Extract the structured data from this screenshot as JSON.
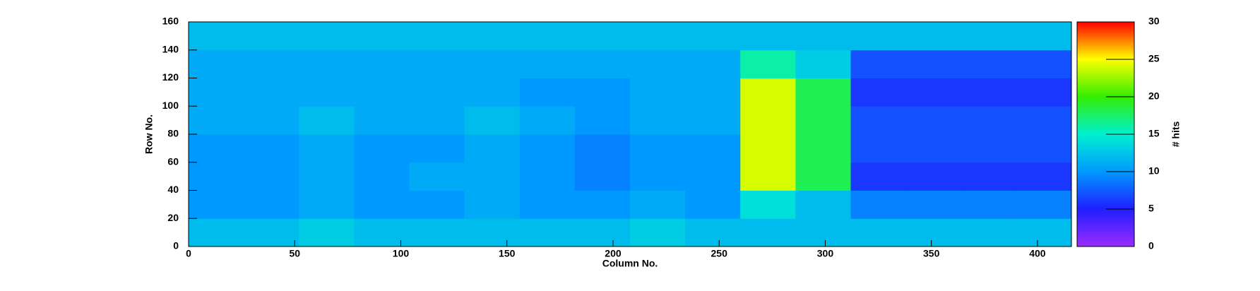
{
  "chart_data": {
    "type": "heatmap",
    "xlabel": "Column No.",
    "ylabel": "Row No.",
    "zlabel": "# hits",
    "xbins": [
      0,
      26,
      52,
      78,
      104,
      130,
      156,
      182,
      208,
      234,
      260,
      286,
      312,
      338,
      364,
      390,
      416
    ],
    "ybins": [
      0,
      20,
      40,
      60,
      80,
      100,
      120,
      140,
      160
    ],
    "z": [
      [
        12,
        12,
        13,
        12,
        12,
        12,
        12,
        12,
        13,
        12,
        12,
        12,
        12,
        12,
        12,
        12
      ],
      [
        10,
        10,
        11,
        10,
        10,
        11,
        10,
        10,
        11,
        10,
        14,
        12,
        9,
        9,
        9,
        9
      ],
      [
        10,
        10,
        11,
        10,
        11,
        11,
        10,
        9,
        10,
        10,
        24,
        18,
        6,
        6,
        6,
        6
      ],
      [
        10,
        10,
        11,
        10,
        10,
        11,
        10,
        9,
        10,
        10,
        24,
        18,
        7,
        7,
        7,
        7
      ],
      [
        11,
        11,
        12,
        11,
        11,
        12,
        11,
        10,
        11,
        11,
        24,
        18,
        7,
        7,
        7,
        7
      ],
      [
        11,
        11,
        11,
        11,
        11,
        11,
        10,
        10,
        11,
        11,
        24,
        18,
        6,
        6,
        6,
        6
      ],
      [
        11,
        11,
        11,
        11,
        11,
        11,
        11,
        11,
        11,
        11,
        16,
        13,
        7,
        7,
        7,
        7
      ],
      [
        12,
        12,
        12,
        12,
        12,
        12,
        12,
        12,
        12,
        12,
        12,
        12,
        12,
        12,
        12,
        12
      ]
    ],
    "xlim": [
      0,
      416
    ],
    "ylim": [
      0,
      160
    ],
    "zlim": [
      0,
      30
    ],
    "xticks": [
      0,
      50,
      100,
      150,
      200,
      250,
      300,
      350,
      400
    ],
    "yticks": [
      0,
      20,
      40,
      60,
      80,
      100,
      120,
      140,
      160
    ],
    "zticks": [
      0,
      5,
      10,
      15,
      20,
      25,
      30
    ],
    "colorscale": [
      "#9a2cff",
      "#1f1fff",
      "#0099ff",
      "#00f0d0",
      "#33ee00",
      "#ffff00",
      "#ff0000"
    ]
  }
}
